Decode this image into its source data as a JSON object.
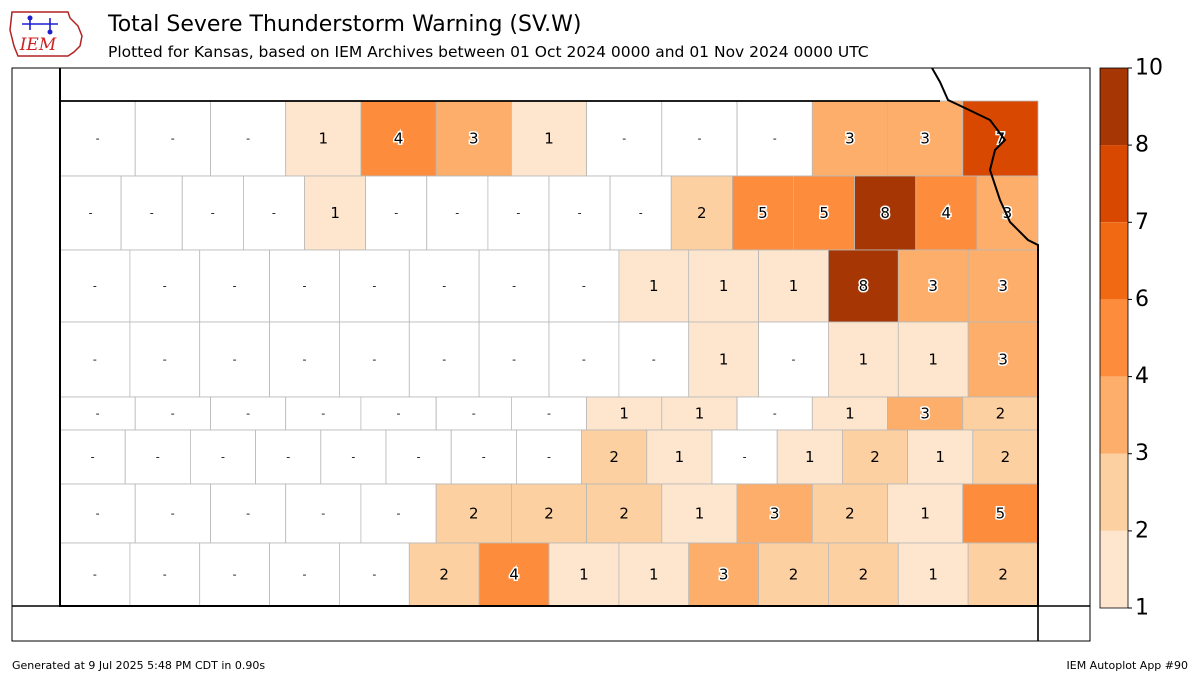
{
  "title": "Total Severe Thunderstorm Warning (SV.W)",
  "subtitle": "Plotted for Kansas, based on IEM Archives  between 01 Oct 2024 0000 and 01 Nov 2024 0000 UTC",
  "logo_text": "IEM",
  "footer_left": "Generated at 9 Jul 2025 5:48 PM CDT in 0.90s",
  "footer_right": "IEM Autoplot App #90",
  "colorbar": {
    "ticks": [
      "1",
      "2",
      "3",
      "4",
      "6",
      "7",
      "8",
      "10"
    ],
    "colors": [
      "#fee6ce",
      "#fdd0a2",
      "#fdae6b",
      "#fd8d3c",
      "#f16913",
      "#d94801",
      "#a63603"
    ]
  },
  "map": {
    "rows": [
      [
        "-",
        "-",
        "-",
        "1",
        "4",
        "3",
        "1",
        "-",
        "-",
        "-",
        "3",
        "3",
        "7"
      ],
      [
        "-",
        "-",
        "-",
        "-",
        "1",
        "-",
        "-",
        "-",
        "-",
        "-",
        "2",
        "5",
        "5",
        "8",
        "4",
        "3"
      ],
      [
        "-",
        "-",
        "-",
        "-",
        "-",
        "-",
        "-",
        "-",
        "1",
        "1",
        "1",
        "8",
        "3",
        "3"
      ],
      [
        "-",
        "-",
        "-",
        "-",
        "-",
        "-",
        "-",
        "-",
        "-",
        "1",
        "-",
        "1",
        "1",
        "3"
      ],
      [
        "-",
        "-",
        "-",
        "-",
        "-",
        "-",
        "-",
        "1",
        "1",
        "-",
        "1",
        "3",
        "2"
      ],
      [
        "-",
        "-",
        "-",
        "-",
        "-",
        "-",
        "-",
        "-",
        "2",
        "1",
        "-",
        "1",
        "2",
        "1",
        "2"
      ],
      [
        "-",
        "-",
        "-",
        "-",
        "-",
        "2",
        "2",
        "2",
        "1",
        "3",
        "2",
        "1",
        "5"
      ],
      [
        "-",
        "-",
        "-",
        "-",
        "-",
        "2",
        "4",
        "1",
        "1",
        "3",
        "2",
        "2",
        "1",
        "2"
      ]
    ]
  }
}
